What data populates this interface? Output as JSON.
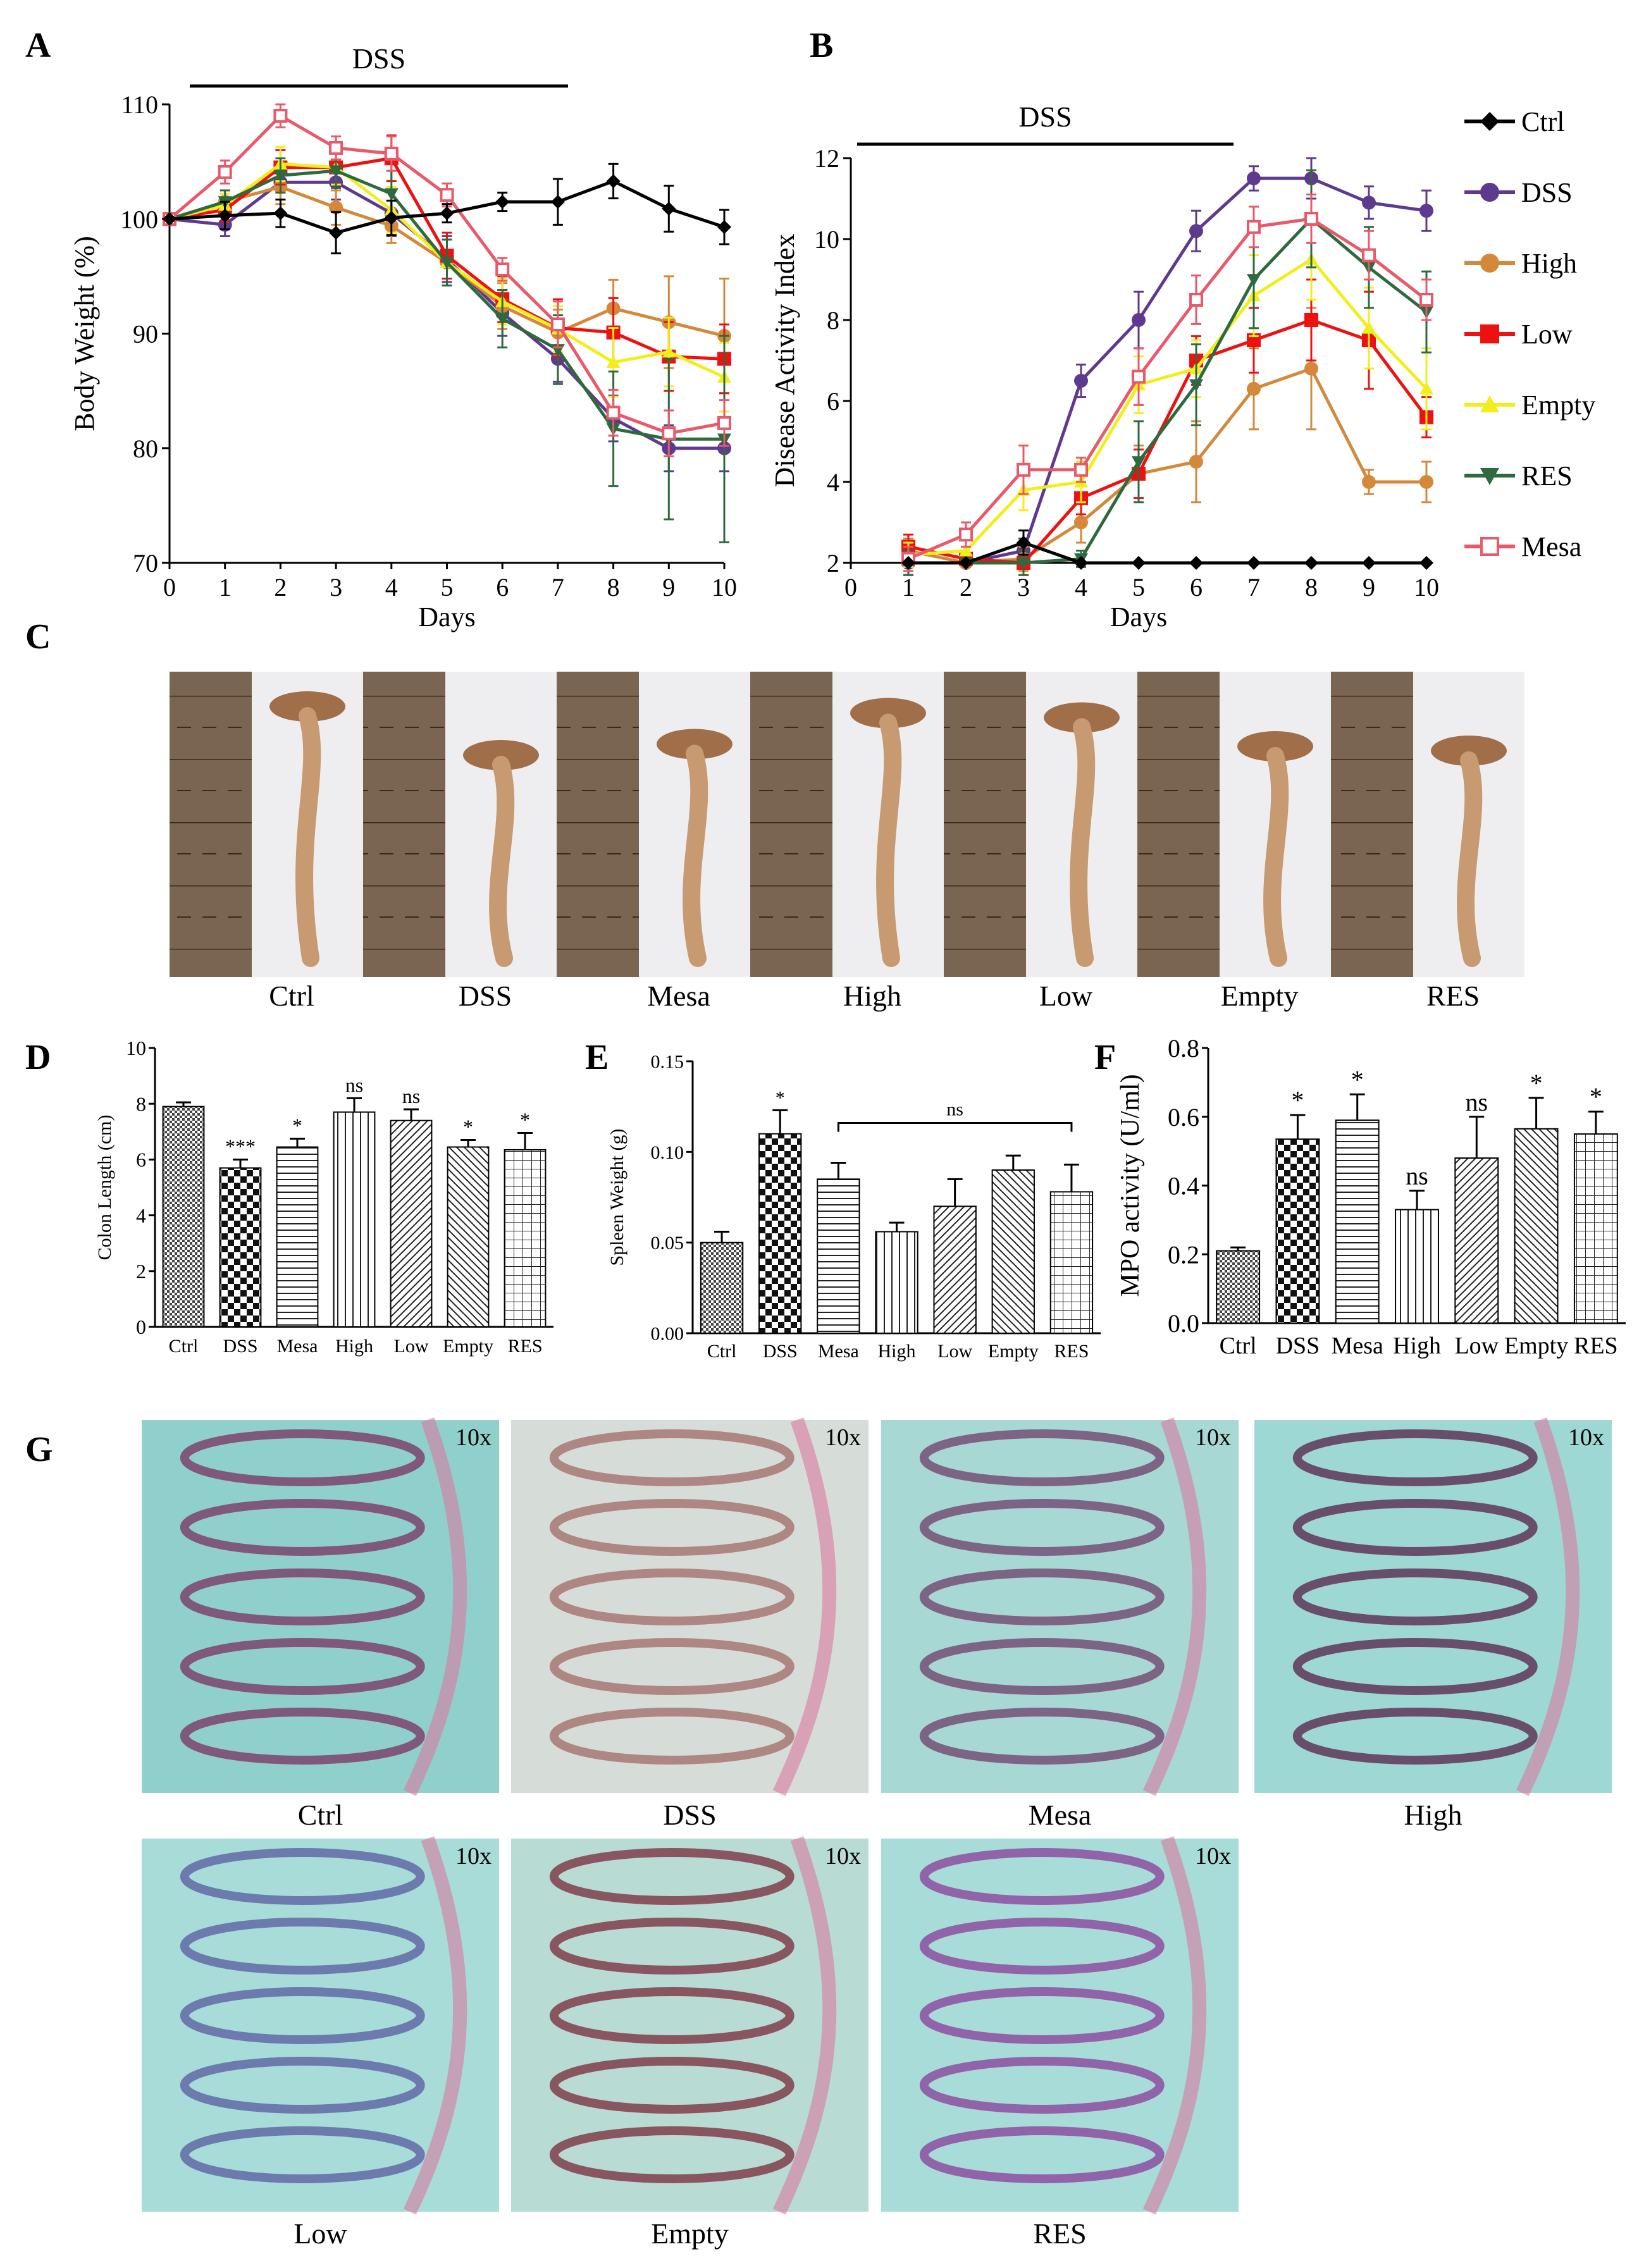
{
  "panels": {
    "A": "A",
    "B": "B",
    "C": "C",
    "D": "D",
    "E": "E",
    "F": "F",
    "G": "G"
  },
  "colors": {
    "Ctrl": "#000000",
    "DSS": "#5e3a8f",
    "High": "#d4883a",
    "Low": "#ee1111",
    "Empty": "#f2ee1c",
    "RES": "#2e6a3e",
    "Mesa": "#e8596a"
  },
  "legend": {
    "entries": [
      {
        "name": "Ctrl",
        "marker": "diamond"
      },
      {
        "name": "DSS",
        "marker": "circle"
      },
      {
        "name": "High",
        "marker": "circle"
      },
      {
        "name": "Low",
        "marker": "square"
      },
      {
        "name": "Empty",
        "marker": "triangle"
      },
      {
        "name": "RES",
        "marker": "triangle-down"
      },
      {
        "name": "Mesa",
        "marker": "square-open"
      }
    ]
  },
  "chart_data": [
    {
      "id": "A",
      "type": "line",
      "bar_label": "DSS",
      "xlabel": "Days",
      "ylabel": "Body Weight (%)",
      "x": [
        0,
        1,
        2,
        3,
        4,
        5,
        6,
        7,
        8,
        9,
        10
      ],
      "xlim": [
        0,
        10
      ],
      "ylim": [
        70,
        110
      ],
      "yticks": [
        70,
        80,
        90,
        100,
        110
      ],
      "series": [
        {
          "name": "Ctrl",
          "values": [
            100,
            100.3,
            100.5,
            98.8,
            100.1,
            100.5,
            101.5,
            101.5,
            103.3,
            100.9,
            99.3
          ],
          "err": [
            0,
            1.2,
            1.2,
            1.8,
            1.5,
            0.8,
            0.8,
            2,
            1.5,
            2,
            1.5
          ]
        },
        {
          "name": "DSS",
          "values": [
            100,
            99.5,
            103.2,
            103.2,
            100.5,
            96.5,
            91.8,
            87.8,
            82.6,
            80,
            80
          ],
          "err": [
            0,
            1,
            1.5,
            1.5,
            2,
            2,
            2,
            2,
            2,
            2,
            2
          ]
        },
        {
          "name": "High",
          "values": [
            100,
            101.5,
            102.8,
            101,
            99.4,
            96.2,
            92.4,
            90.1,
            92.2,
            91,
            89.8
          ],
          "err": [
            0,
            1,
            1.5,
            1.5,
            1.5,
            2,
            2,
            2,
            2.5,
            4,
            5
          ]
        },
        {
          "name": "Low",
          "values": [
            100,
            100.8,
            104.5,
            104.5,
            105.3,
            96.8,
            93,
            90.5,
            90.1,
            88,
            87.8
          ],
          "err": [
            0,
            1,
            1.5,
            1.5,
            2,
            2,
            2,
            2.5,
            3,
            3,
            3
          ]
        },
        {
          "name": "Empty",
          "values": [
            100,
            101.2,
            104.8,
            104.5,
            100.8,
            96.2,
            92.8,
            90.4,
            87.5,
            88.4,
            86.2
          ],
          "err": [
            0,
            1,
            1.5,
            1.5,
            2,
            2,
            2,
            2,
            3,
            3,
            3
          ]
        },
        {
          "name": "RES",
          "values": [
            100,
            101.5,
            103.8,
            104.2,
            102.2,
            96.2,
            91.3,
            88.6,
            81.7,
            80.8,
            80.8
          ],
          "err": [
            0,
            1,
            1.5,
            1.5,
            2,
            2,
            2.5,
            3,
            5,
            7,
            9
          ]
        },
        {
          "name": "Mesa",
          "values": [
            100,
            104.1,
            109,
            106.2,
            105.7,
            102.1,
            95.6,
            90.8,
            83.1,
            81.3,
            82.2
          ],
          "err": [
            0,
            1,
            1,
            1,
            1.5,
            1,
            1,
            2,
            2,
            2,
            2
          ]
        }
      ]
    },
    {
      "id": "B",
      "type": "line",
      "bar_label": "DSS",
      "xlabel": "Days",
      "ylabel": "Disease Activity Index",
      "x": [
        1,
        2,
        3,
        4,
        5,
        6,
        7,
        8,
        9,
        10
      ],
      "xlim": [
        0,
        10
      ],
      "xticks": [
        0,
        1,
        2,
        3,
        4,
        5,
        6,
        7,
        8,
        9,
        10
      ],
      "ylim": [
        2,
        12
      ],
      "yticks": [
        2,
        4,
        6,
        8,
        10,
        12
      ],
      "series": [
        {
          "name": "Ctrl",
          "values": [
            2,
            2,
            2.5,
            2,
            2,
            2,
            2,
            2,
            2,
            2
          ],
          "err": [
            0,
            0,
            0.3,
            0,
            0,
            0,
            0,
            0,
            0,
            0
          ]
        },
        {
          "name": "DSS",
          "values": [
            2,
            2,
            2.3,
            6.5,
            8,
            10.2,
            11.5,
            11.5,
            10.9,
            10.7
          ],
          "err": [
            0.3,
            0,
            0.3,
            0.4,
            0.7,
            0.5,
            0.3,
            0.5,
            0.4,
            0.5
          ]
        },
        {
          "name": "High",
          "values": [
            2.3,
            2,
            2.1,
            3,
            4.2,
            4.5,
            6.3,
            6.8,
            4,
            4
          ],
          "err": [
            0.3,
            0,
            0.3,
            0.5,
            0.7,
            1,
            1,
            1.5,
            0.3,
            0.5
          ]
        },
        {
          "name": "Low",
          "values": [
            2.4,
            2.1,
            2,
            3.6,
            4.2,
            7,
            7.5,
            8,
            7.5,
            5.6
          ],
          "err": [
            0.3,
            0,
            0.3,
            0.4,
            0.6,
            0.6,
            0.8,
            1,
            1.2,
            0.5
          ]
        },
        {
          "name": "Empty",
          "values": [
            2.2,
            2.3,
            3.8,
            4,
            6.4,
            6.8,
            8.6,
            9.5,
            7.8,
            6.3
          ],
          "err": [
            0.3,
            0.3,
            0.5,
            0.5,
            0.7,
            0.7,
            1,
            1,
            1,
            1
          ]
        },
        {
          "name": "RES",
          "values": [
            2,
            2,
            2,
            2.1,
            4.5,
            6.4,
            9,
            10.5,
            9.3,
            8.2
          ],
          "err": [
            0.3,
            0,
            0.3,
            0.2,
            1,
            1,
            1.2,
            1.2,
            1,
            1
          ]
        },
        {
          "name": "Mesa",
          "values": [
            2.1,
            2.7,
            4.3,
            4.3,
            6.6,
            8.5,
            10.3,
            10.5,
            9.6,
            8.5
          ],
          "err": [
            0.3,
            0.3,
            0.6,
            0.3,
            0.7,
            0.6,
            0.5,
            0.6,
            0.6,
            0.5
          ]
        }
      ]
    },
    {
      "id": "D",
      "type": "bar",
      "ylabel": "Colon Length (cm)",
      "categories": [
        "Ctrl",
        "DSS",
        "Mesa",
        "High",
        "Low",
        "Empty",
        "RES"
      ],
      "values": [
        7.9,
        5.7,
        6.45,
        7.7,
        7.4,
        6.45,
        6.35
      ],
      "err": [
        0.15,
        0.3,
        0.3,
        0.5,
        0.4,
        0.25,
        0.6
      ],
      "significance": [
        "",
        "***",
        "*",
        "ns",
        "ns",
        "*",
        "*"
      ],
      "patterns": [
        "dots",
        "checker",
        "hlines",
        "vlines",
        "diag",
        "bdiag",
        "grid"
      ],
      "ylim": [
        0,
        10
      ],
      "yticks": [
        0,
        2,
        4,
        6,
        8,
        10
      ]
    },
    {
      "id": "E",
      "type": "bar",
      "ylabel": "Spleen Weight (g)",
      "categories": [
        "Ctrl",
        "DSS",
        "Mesa",
        "High",
        "Low",
        "Empty",
        "RES"
      ],
      "values": [
        0.05,
        0.11,
        0.085,
        0.056,
        0.07,
        0.09,
        0.078
      ],
      "err": [
        0.006,
        0.013,
        0.009,
        0.005,
        0.015,
        0.008,
        0.015
      ],
      "significance": [
        "",
        "*",
        "",
        "",
        "",
        "",
        ""
      ],
      "bracket_label": "ns",
      "bracket_range": [
        2,
        6
      ],
      "patterns": [
        "dots",
        "checker",
        "hlines",
        "vlines",
        "diag",
        "bdiag",
        "grid"
      ],
      "ylim": [
        0,
        0.15
      ],
      "yticks": [
        0.0,
        0.05,
        0.1,
        0.15
      ],
      "ytick_decimals": 2
    },
    {
      "id": "F",
      "type": "bar",
      "ylabel": "MPO activity (U/ml)",
      "categories": [
        "Ctrl",
        "DSS",
        "Mesa",
        "High",
        "Low",
        "Empty",
        "RES"
      ],
      "values": [
        0.21,
        0.535,
        0.59,
        0.33,
        0.48,
        0.565,
        0.55
      ],
      "err": [
        0.01,
        0.07,
        0.075,
        0.055,
        0.12,
        0.09,
        0.065
      ],
      "significance": [
        "",
        "*",
        "*",
        "ns",
        "ns",
        "*",
        "*"
      ],
      "patterns": [
        "dots",
        "checker",
        "hlines",
        "vlines",
        "diag",
        "bdiag",
        "grid"
      ],
      "ylim": [
        0,
        0.8
      ],
      "yticks": [
        0,
        0.2,
        0.4,
        0.6,
        0.8
      ],
      "ytick_decimals": 1
    }
  ],
  "photo_c": {
    "groups": [
      "Ctrl",
      "DSS",
      "Mesa",
      "High",
      "Low",
      "Empty",
      "RES"
    ]
  },
  "histology": {
    "magnification": "10x",
    "images": [
      {
        "label": "Ctrl"
      },
      {
        "label": "DSS"
      },
      {
        "label": "Mesa"
      },
      {
        "label": "High"
      },
      {
        "label": "Low"
      },
      {
        "label": "Empty"
      },
      {
        "label": "RES"
      }
    ]
  }
}
